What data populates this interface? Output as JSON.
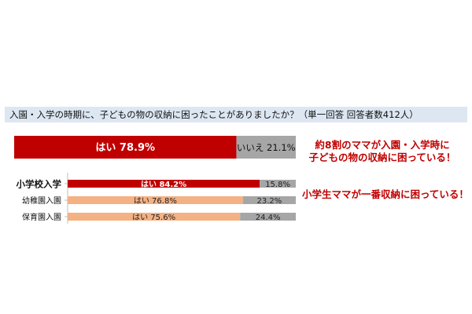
{
  "question": "入園・入学の時期に、子どもの物の収納に困ったことがありましたか？（単一回答 回答者数412人）",
  "callouts": {
    "overall": [
      "約8割のママが入園・入学時に",
      "子どもの物の収納に困っている！"
    ],
    "elementary": "小学生ママが一番収納に困っている！"
  },
  "colors": {
    "overall_yes": "#c00000",
    "no": "#a6a6a6",
    "elementary_yes": "#c00000",
    "other_yes": "#f4b183",
    "question_band": "#dde7f2",
    "callout": "#c00000"
  },
  "chart_data": [
    {
      "type": "bar",
      "orientation": "horizontal",
      "stacked": true,
      "percent_scale": [
        0,
        100
      ],
      "categories": [
        ""
      ],
      "series": [
        {
          "name": "はい",
          "values": [
            78.9
          ]
        },
        {
          "name": "いいえ",
          "values": [
            21.1
          ]
        }
      ],
      "data_labels": {
        "yes": "はい 78.9%",
        "no": "いいえ 21.1%"
      }
    },
    {
      "type": "bar",
      "orientation": "horizontal",
      "stacked": true,
      "percent_scale": [
        0,
        100
      ],
      "categories": [
        "小学校入学",
        "幼稚園入園",
        "保育園入園"
      ],
      "series": [
        {
          "name": "はい",
          "values": [
            84.2,
            76.8,
            75.6
          ]
        },
        {
          "name": "いいえ",
          "values": [
            15.8,
            23.2,
            24.4
          ]
        }
      ],
      "data_labels": {
        "yes": [
          "はい 84.2%",
          "はい 76.8%",
          "はい 75.6%"
        ],
        "no": [
          "15.8%",
          "23.2%",
          "24.4%"
        ]
      }
    }
  ]
}
